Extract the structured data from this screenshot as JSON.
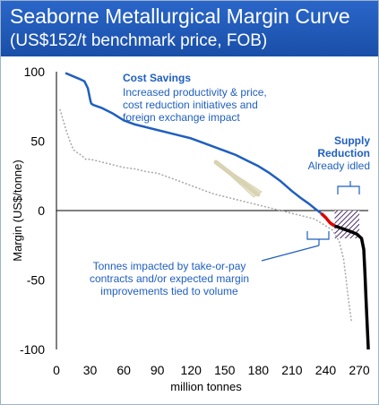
{
  "header": {
    "title": "Seaborne Metallurgical Margin Curve",
    "subtitle": "(US$152/t benchmark price, FOB)"
  },
  "colors": {
    "header_bg": "#1f57b5",
    "blue_series": "#1f5fbf",
    "grey_series": "#a6a6a6",
    "red_segment": "#e00000",
    "black_segment": "#000000",
    "annotation_text": "#1f5fbf",
    "hatch": "#4b2e6b"
  },
  "chart_data": {
    "type": "line",
    "title": "Seaborne Metallurgical Margin Curve",
    "subtitle": "(US$152/t benchmark price, FOB)",
    "xlabel": "million tonnes",
    "ylabel": "Margin (US$/tonne)",
    "xlim": [
      0,
      278
    ],
    "ylim": [
      -100,
      100
    ],
    "xticks": [
      0,
      30,
      60,
      90,
      120,
      150,
      180,
      210,
      240,
      270
    ],
    "yticks": [
      100,
      50,
      0,
      -50,
      -100
    ],
    "grid": false,
    "series": [
      {
        "style": "solid-blue",
        "points": [
          [
            8,
            99
          ],
          [
            14,
            97
          ],
          [
            20,
            95
          ],
          [
            25,
            93
          ],
          [
            28,
            88
          ],
          [
            30,
            80
          ],
          [
            31,
            77
          ],
          [
            33,
            76
          ],
          [
            40,
            74
          ],
          [
            50,
            70
          ],
          [
            60,
            65
          ],
          [
            70,
            62
          ],
          [
            80,
            60
          ],
          [
            90,
            58
          ],
          [
            100,
            56
          ],
          [
            110,
            54
          ],
          [
            120,
            52
          ],
          [
            130,
            49
          ],
          [
            140,
            46
          ],
          [
            150,
            43
          ],
          [
            160,
            40
          ],
          [
            170,
            36
          ],
          [
            180,
            32
          ],
          [
            190,
            27
          ],
          [
            200,
            21
          ],
          [
            210,
            14
          ],
          [
            218,
            9
          ],
          [
            225,
            5
          ],
          [
            231,
            1
          ],
          [
            236,
            -2
          ]
        ]
      },
      {
        "style": "solid-red",
        "points": [
          [
            236,
            -2
          ],
          [
            240,
            -5
          ],
          [
            244,
            -9
          ],
          [
            248,
            -11
          ]
        ]
      },
      {
        "style": "solid-black",
        "points": [
          [
            248,
            -11
          ],
          [
            255,
            -13
          ],
          [
            262,
            -15
          ],
          [
            268,
            -17
          ],
          [
            272,
            -20
          ],
          [
            274,
            -28
          ],
          [
            275,
            -45
          ],
          [
            276,
            -65
          ],
          [
            277,
            -82
          ],
          [
            278,
            -100
          ]
        ]
      },
      {
        "style": "dotted-grey",
        "points": [
          [
            3,
            73
          ],
          [
            6,
            65
          ],
          [
            9,
            57
          ],
          [
            12,
            50
          ],
          [
            15,
            44
          ],
          [
            18,
            42
          ],
          [
            22,
            40
          ],
          [
            26,
            37
          ],
          [
            30,
            37
          ],
          [
            40,
            35
          ],
          [
            50,
            33
          ],
          [
            60,
            31
          ],
          [
            70,
            30
          ],
          [
            80,
            28
          ],
          [
            90,
            27
          ],
          [
            100,
            24
          ],
          [
            110,
            21
          ],
          [
            120,
            18
          ],
          [
            130,
            15
          ],
          [
            140,
            12
          ],
          [
            150,
            10
          ],
          [
            160,
            8
          ],
          [
            170,
            6
          ],
          [
            180,
            4
          ],
          [
            190,
            2
          ],
          [
            200,
            0
          ],
          [
            210,
            -2
          ],
          [
            220,
            -4
          ],
          [
            230,
            -6
          ],
          [
            238,
            -10
          ],
          [
            246,
            -14
          ],
          [
            252,
            -22
          ],
          [
            256,
            -35
          ],
          [
            258,
            -48
          ],
          [
            260,
            -62
          ],
          [
            262,
            -74
          ],
          [
            263,
            -80
          ]
        ]
      }
    ],
    "shaded_region": {
      "x": [
        248,
        270
      ],
      "y": [
        -20,
        0
      ],
      "pattern": "hatched"
    },
    "annotations": [
      {
        "label": "Cost Savings",
        "lines": [
          "Increased productivity & price,",
          "cost reduction initiatives and",
          "foreign exchange impact"
        ]
      },
      {
        "label": "Supply",
        "lines": [
          "Reduction",
          "Already idled"
        ]
      },
      {
        "label": "",
        "lines": [
          "Tonnes impacted by take-or-pay",
          "contracts and/or expected margin",
          "improvements tied to volume"
        ]
      }
    ]
  }
}
